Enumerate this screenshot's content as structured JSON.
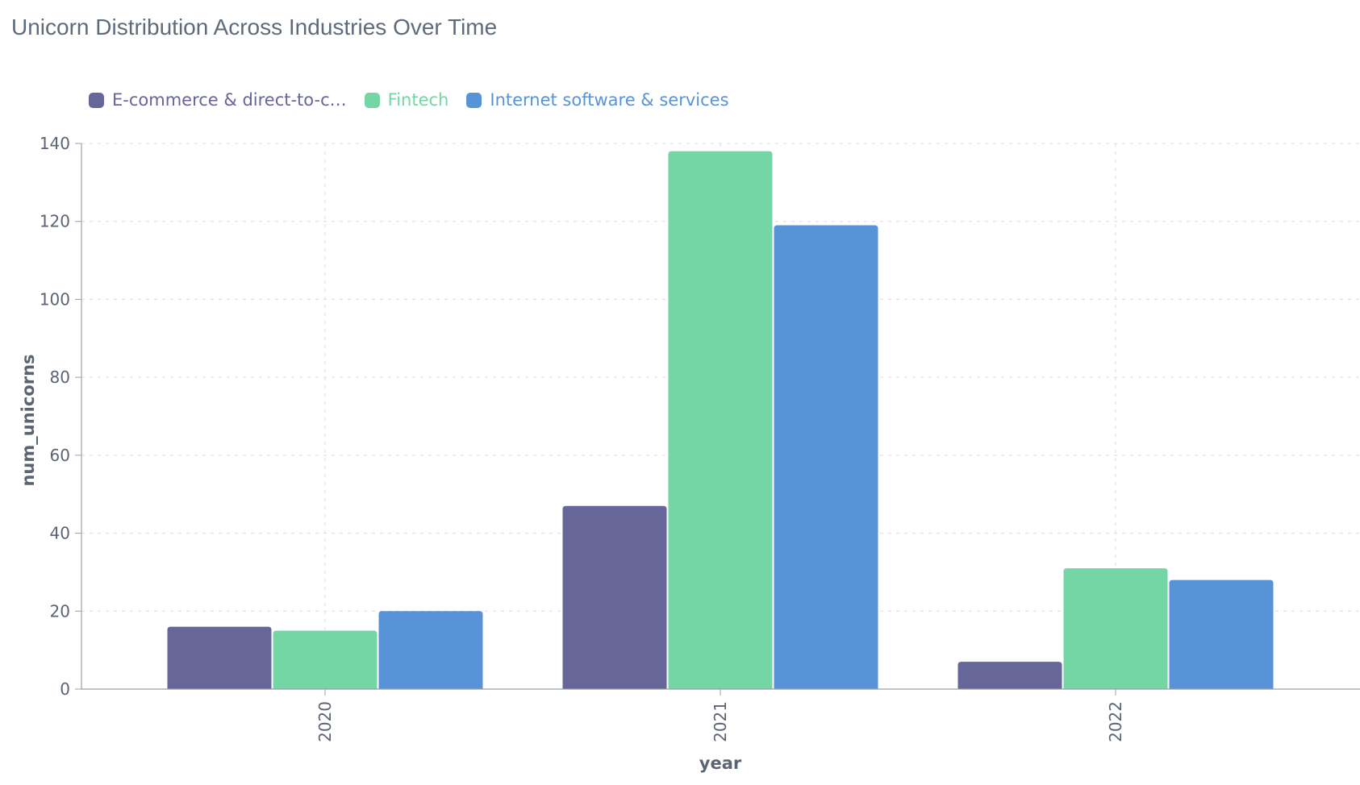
{
  "chart_data": {
    "type": "bar",
    "title": "Unicorn Distribution Across Industries Over Time",
    "xlabel": "year",
    "ylabel": "num_unicorns",
    "categories": [
      "2020",
      "2021",
      "2022"
    ],
    "ylim": [
      0,
      140
    ],
    "yticks": [
      "0",
      "20",
      "40",
      "60",
      "80",
      "100",
      "120",
      "140"
    ],
    "grid": true,
    "legend_position": "top-left",
    "series": [
      {
        "name": "E-commerce & direct-to-c…",
        "color": "#666699",
        "values": [
          16,
          47,
          7
        ]
      },
      {
        "name": "Fintech",
        "color": "#74d5a5",
        "values": [
          15,
          138,
          31
        ]
      },
      {
        "name": "Internet software & services",
        "color": "#5993d7",
        "values": [
          20,
          119,
          28
        ]
      }
    ]
  }
}
